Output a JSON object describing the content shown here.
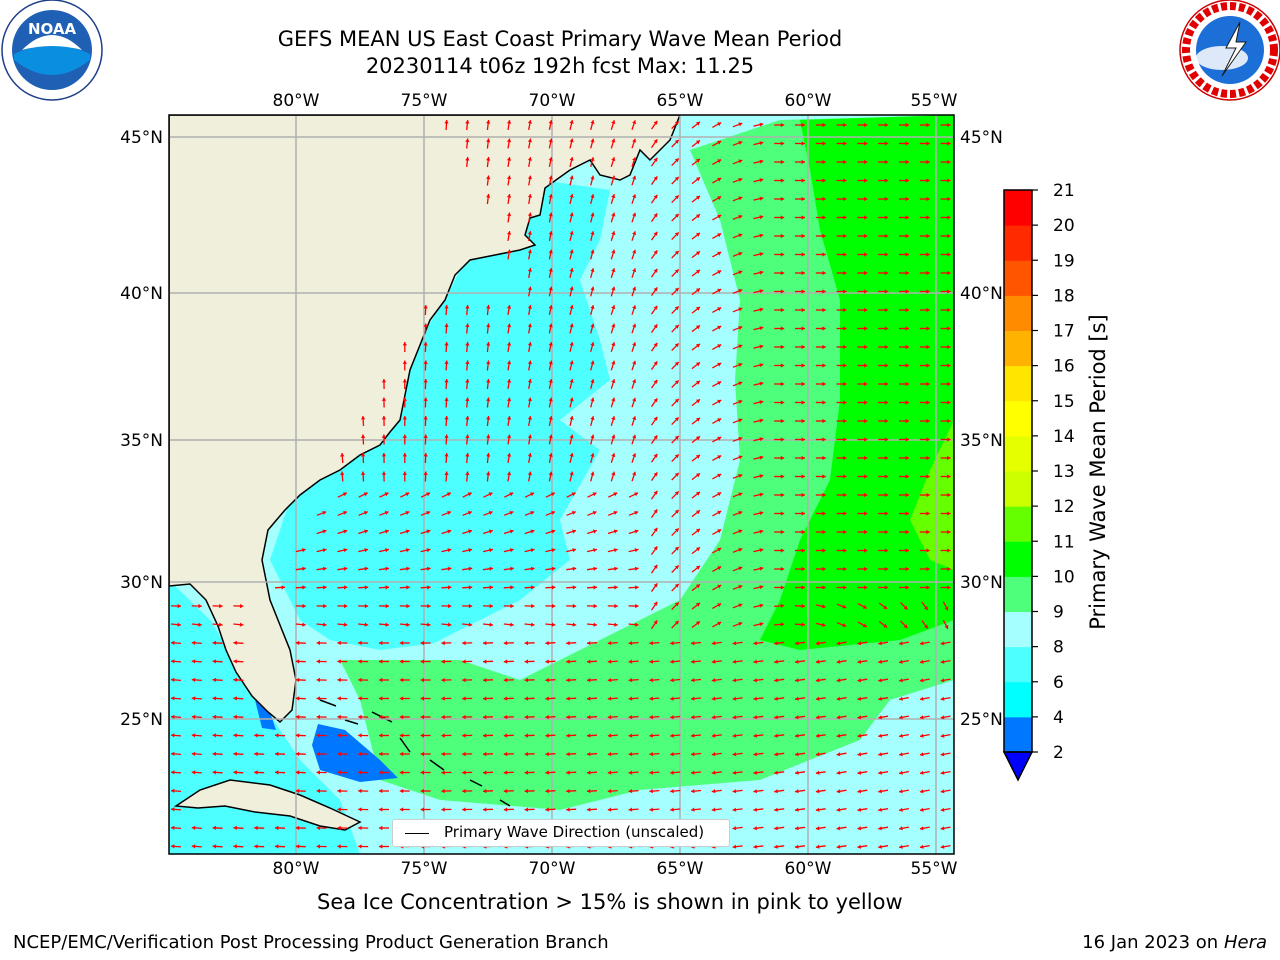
{
  "title": {
    "line1": "GEFS MEAN US East Coast Primary Wave Mean Period",
    "line2": "20230114 t06z 192h fcst   Max: 11.25"
  },
  "logos": {
    "left_icon": "noaa-logo-icon",
    "left_text": "NOAA",
    "right_icon": "nws-logo-icon",
    "right_text": "NATIONAL WEATHER SERVICE"
  },
  "map": {
    "lon_labels": [
      "80°W",
      "75°W",
      "70°W",
      "65°W",
      "60°W",
      "55°W"
    ],
    "lat_labels": [
      "45°N",
      "40°N",
      "35°N",
      "30°N",
      "25°N"
    ],
    "lon_range": [
      -85,
      -54
    ],
    "lat_range": [
      20.5,
      46
    ],
    "land_color": "#efefdc",
    "arrow_color": "#ff0000",
    "legend_label": "Primary Wave Direction (unscaled)"
  },
  "colorbar": {
    "title": "Primary Wave Mean Period [s]",
    "ticks": [
      "2",
      "4",
      "6",
      "8",
      "9",
      "10",
      "11",
      "12",
      "13",
      "14",
      "15",
      "16",
      "17",
      "18",
      "19",
      "20",
      "21"
    ],
    "colors": [
      "#0077ff",
      "#00ffff",
      "#4dffff",
      "#a6ffff",
      "#4dff7a",
      "#00ff00",
      "#66ff00",
      "#ccff00",
      "#e6ff00",
      "#ffff00",
      "#ffe600",
      "#ffb300",
      "#ff8c00",
      "#ff5500",
      "#ff2a00",
      "#ff0000"
    ],
    "under_color": "#0000ff"
  },
  "note": "Sea Ice Concentration > 15% is shown in pink to yellow",
  "footer": {
    "left": "NCEP/EMC/Verification Post Processing Product Generation Branch",
    "date": "16 Jan 2023 on",
    "machine": "Hera"
  }
}
